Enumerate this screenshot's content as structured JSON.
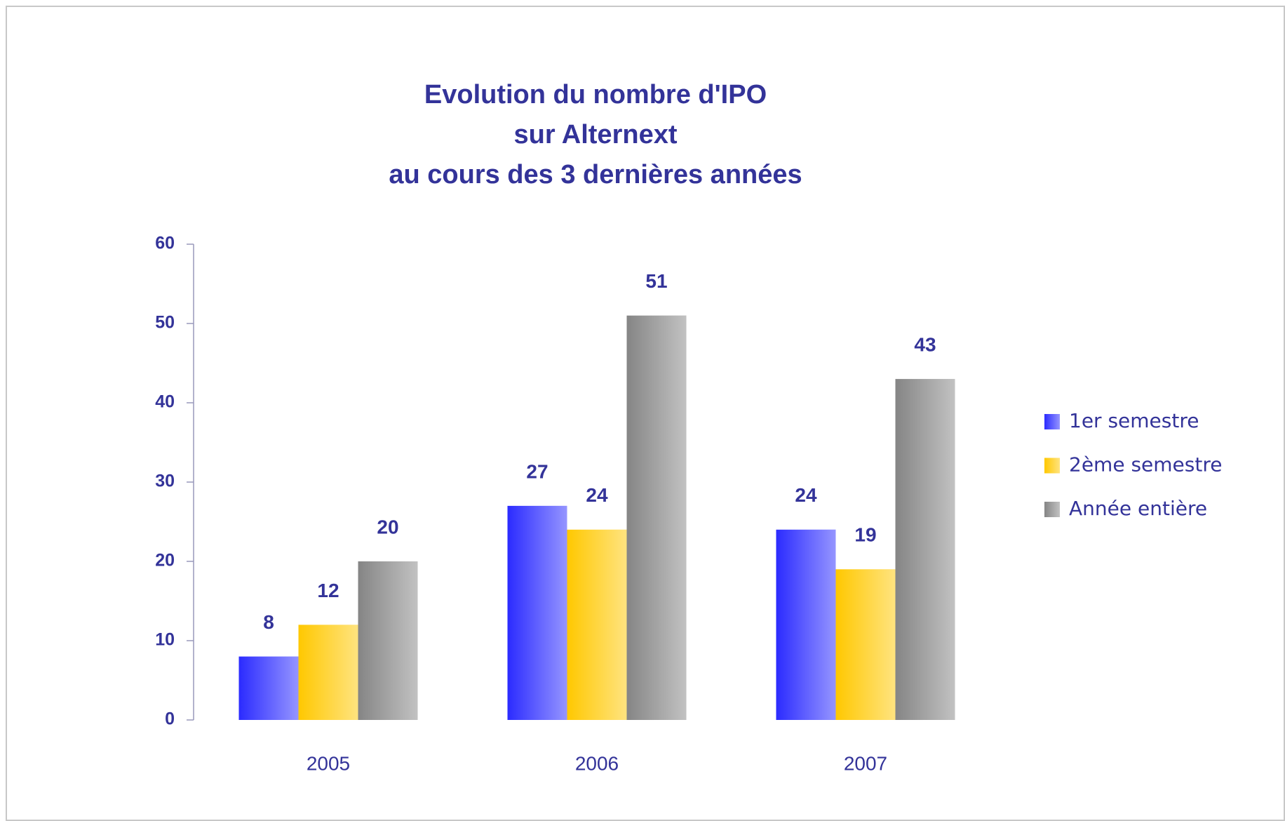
{
  "chart_data": {
    "type": "bar",
    "title": [
      "Evolution du nombre d'IPO",
      "sur Alternext",
      "au cours des 3 dernières années"
    ],
    "categories": [
      "2005",
      "2006",
      "2007"
    ],
    "series": [
      {
        "name": "1er semestre",
        "color": "#2b2bff",
        "values": [
          8,
          27,
          24
        ]
      },
      {
        "name": "2ème semestre",
        "color": "#ffc800",
        "values": [
          12,
          24,
          19
        ]
      },
      {
        "name": "Année entière",
        "color": "#858585",
        "values": [
          20,
          51,
          43
        ]
      }
    ],
    "ylim": [
      0,
      60
    ],
    "yticks": [
      0,
      10,
      20,
      30,
      40,
      50,
      60
    ],
    "grid": false,
    "legend": "right"
  }
}
